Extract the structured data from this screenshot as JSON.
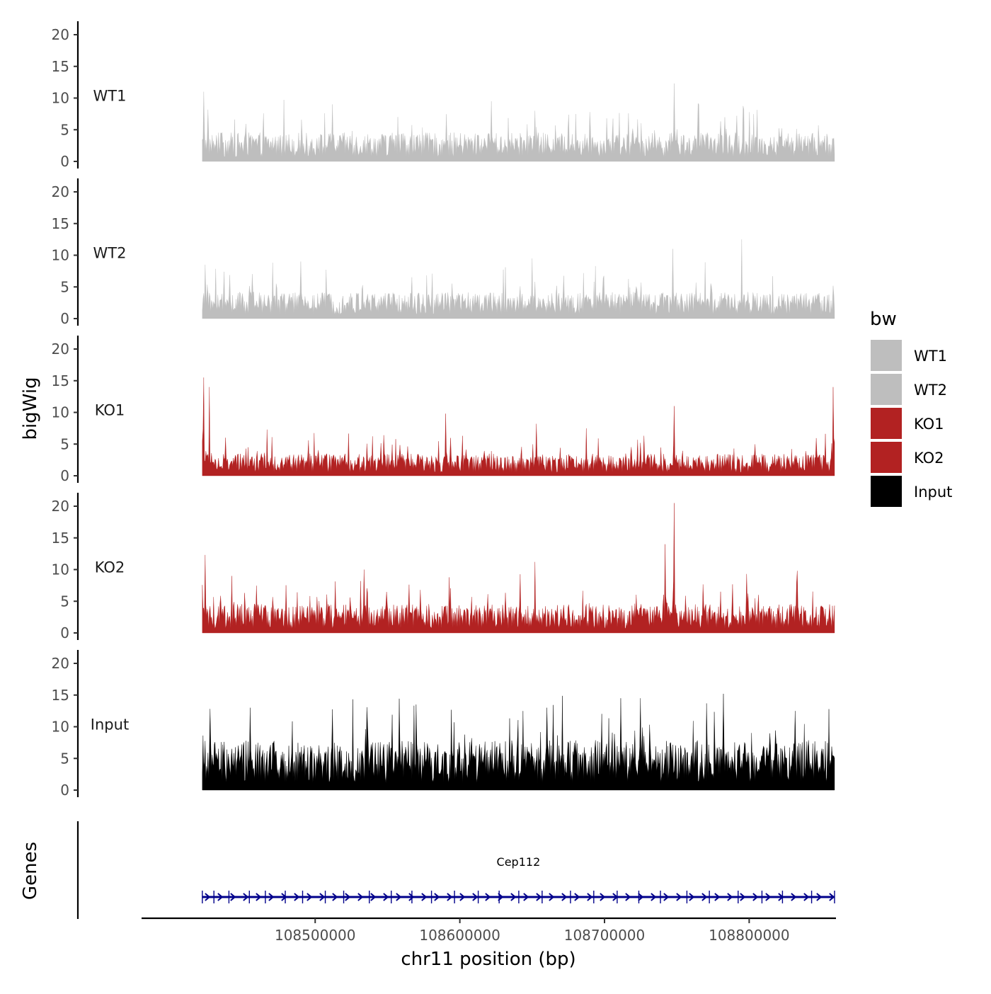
{
  "chart_data": {
    "type": "area",
    "title": "",
    "xlabel": "chr11 position (bp)",
    "ylabel": "bigWig",
    "genes_label": "Genes",
    "xlim": [
      108380000,
      108860000
    ],
    "data_range": [
      108422000,
      108859000
    ],
    "ylim": [
      0,
      22
    ],
    "y_ticks": [
      0,
      5,
      10,
      15,
      20
    ],
    "x_ticks": [
      108500000,
      108600000,
      108700000,
      108800000
    ],
    "x_tick_labels": [
      "108500000",
      "108600000",
      "108700000",
      "108800000"
    ],
    "legend": {
      "title": "bw",
      "position": "right",
      "entries": [
        {
          "label": "WT1",
          "color": "#bebebe"
        },
        {
          "label": "WT2",
          "color": "#bebebe"
        },
        {
          "label": "KO1",
          "color": "#b22222"
        },
        {
          "label": "KO2",
          "color": "#b22222"
        },
        {
          "label": "Input",
          "color": "#000000"
        }
      ]
    },
    "series": [
      {
        "name": "WT1",
        "color": "#bebebe",
        "baseline_mean": 2.6,
        "max": 12.3,
        "peaks": [
          {
            "x": 108423000,
            "y": 11
          },
          {
            "x": 108652000,
            "y": 8
          },
          {
            "x": 108748000,
            "y": 12.3
          },
          {
            "x": 108512000,
            "y": 9
          },
          {
            "x": 108622000,
            "y": 9.5
          }
        ]
      },
      {
        "name": "WT2",
        "color": "#bebebe",
        "baseline_mean": 2.4,
        "max": 12.5,
        "peaks": [
          {
            "x": 108490000,
            "y": 9
          },
          {
            "x": 108650000,
            "y": 9.5
          },
          {
            "x": 108747000,
            "y": 11
          },
          {
            "x": 108795000,
            "y": 12.5
          },
          {
            "x": 108424000,
            "y": 8.5
          }
        ]
      },
      {
        "name": "KO1",
        "color": "#b22222",
        "baseline_mean": 2.0,
        "max": 15.5,
        "peaks": [
          {
            "x": 108423000,
            "y": 15.5
          },
          {
            "x": 108427000,
            "y": 14
          },
          {
            "x": 108590000,
            "y": 9.8
          },
          {
            "x": 108653000,
            "y": 8.2
          },
          {
            "x": 108748000,
            "y": 11
          },
          {
            "x": 108858000,
            "y": 14
          }
        ]
      },
      {
        "name": "KO2",
        "color": "#b22222",
        "baseline_mean": 2.6,
        "max": 20.5,
        "peaks": [
          {
            "x": 108424000,
            "y": 12.3
          },
          {
            "x": 108748000,
            "y": 20.5
          },
          {
            "x": 108742000,
            "y": 14
          },
          {
            "x": 108534000,
            "y": 10
          },
          {
            "x": 108652000,
            "y": 11.2
          },
          {
            "x": 108798000,
            "y": 9.3
          },
          {
            "x": 108833000,
            "y": 9.8
          }
        ]
      },
      {
        "name": "Input",
        "color": "#000000",
        "baseline_mean": 4.5,
        "max": 15.2,
        "peaks": [
          {
            "x": 108782000,
            "y": 15.2
          },
          {
            "x": 108725000,
            "y": 14.5
          },
          {
            "x": 108711000,
            "y": 14.5
          },
          {
            "x": 108570000,
            "y": 13.5
          },
          {
            "x": 108455000,
            "y": 13
          },
          {
            "x": 108660000,
            "y": 13
          }
        ]
      }
    ],
    "genes": [
      {
        "name": "Cep112",
        "start": 108422000,
        "end": 108859000,
        "strand": "+",
        "color": "#00008b"
      }
    ]
  }
}
